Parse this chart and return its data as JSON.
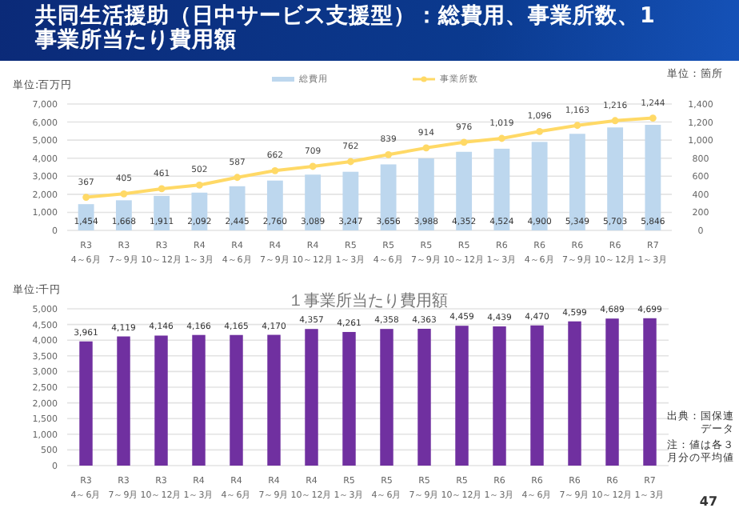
{
  "chart_data": [
    {
      "type": "bar",
      "title": "共同生活援助（日中サービス支援型）：総費用、事業所数、1事業所当たり費用額",
      "ylabel": "単位:百万円",
      "y2label": "単位：箇所",
      "categories": [
        "R3\n4～6月",
        "R3\n7～9月",
        "R3\n10～12月",
        "R4\n1～3月",
        "R4\n4～6月",
        "R4\n7～9月",
        "R4\n10～12月",
        "R5\n1～3月",
        "R5\n4～6月",
        "R5\n7～9月",
        "R5\n10～12月",
        "R6\n1～3月",
        "R6\n4～6月",
        "R6\n7～9月",
        "R6\n10～12月",
        "R7\n1～3月"
      ],
      "series": [
        {
          "name": "総費用",
          "color": "#bdd7ee",
          "values": [
            1454,
            1668,
            1911,
            2092,
            2445,
            2760,
            3089,
            3247,
            3656,
            3988,
            4352,
            4524,
            4900,
            5349,
            5703,
            5846
          ],
          "value_labels": [
            "1,454",
            "1,668",
            "1,911",
            "2,092",
            "2,445",
            "2,760",
            "3,089",
            "3,247",
            "3,656",
            "3,988",
            "4,352",
            "4,524",
            "4,900",
            "5,349",
            "5,703",
            "5,846"
          ]
        },
        {
          "name": "事業所数",
          "type": "line",
          "axis": "y2",
          "color": "#ffd966",
          "marker": "circle",
          "values": [
            367,
            405,
            461,
            502,
            587,
            662,
            709,
            762,
            839,
            914,
            976,
            1019,
            1096,
            1163,
            1216,
            1244
          ],
          "value_labels": [
            "367",
            "405",
            "461",
            "502",
            "587",
            "662",
            "709",
            "762",
            "839",
            "914",
            "976",
            "1,019",
            "1,096",
            "1,163",
            "1,216",
            "1,244"
          ]
        }
      ],
      "ylim": [
        0,
        7000
      ],
      "yticks": [
        {
          "value": 0,
          "label": "0"
        },
        {
          "value": 1000,
          "label": "1,000"
        },
        {
          "value": 2000,
          "label": "2,000"
        },
        {
          "value": 3000,
          "label": "3,000"
        },
        {
          "value": 4000,
          "label": "4,000"
        },
        {
          "value": 5000,
          "label": "5,000"
        },
        {
          "value": 6000,
          "label": "6,000"
        },
        {
          "value": 7000,
          "label": "7,000"
        }
      ],
      "y2lim": [
        0,
        1400
      ],
      "y2ticks": [
        {
          "value": 0,
          "label": "0"
        },
        200,
        400,
        600,
        800,
        {
          "value": 1000,
          "label": "1,000"
        },
        {
          "value": 1200,
          "label": "1,200"
        },
        {
          "value": 1400,
          "label": "1,400"
        }
      ],
      "grid": "y",
      "legend": "top"
    },
    {
      "type": "bar",
      "title": "１事業所当たり費用額",
      "ylabel": "単位:千円",
      "categories": [
        "R3\n4～6月",
        "R3\n7～9月",
        "R3\n10～12月",
        "R4\n1～3月",
        "R4\n4～6月",
        "R4\n7～9月",
        "R4\n10～12月",
        "R5\n1～3月",
        "R5\n4～6月",
        "R5\n7～9月",
        "R5\n10～12月",
        "R6\n1～3月",
        "R6\n4～6月",
        "R6\n7～9月",
        "R6\n10～12月",
        "R7\n1～3月"
      ],
      "values": [
        3961,
        4119,
        4146,
        4166,
        4165,
        4170,
        4357,
        4261,
        4358,
        4363,
        4459,
        4439,
        4470,
        4599,
        4689,
        4699
      ],
      "color": "#7030a0",
      "value_labels": [
        "3,961",
        "4,119",
        "4,146",
        "4,166",
        "4,165",
        "4,170",
        "4,357",
        "4,261",
        "4,358",
        "4,363",
        "4,459",
        "4,439",
        "4,470",
        "4,599",
        "4,689",
        "4,699"
      ],
      "ylim": [
        0,
        5000
      ],
      "yticks": [
        {
          "value": 0,
          "label": "0"
        },
        500,
        {
          "value": 1000,
          "label": "1,000"
        },
        {
          "value": 1500,
          "label": "1,500"
        },
        {
          "value": 2000,
          "label": "2,000"
        },
        {
          "value": 2500,
          "label": "2,500"
        },
        {
          "value": 3000,
          "label": "3,000"
        },
        {
          "value": 3500,
          "label": "3,500"
        },
        {
          "value": 4000,
          "label": "4,000"
        },
        {
          "value": 4500,
          "label": "4,500"
        },
        {
          "value": 5000,
          "label": "5,000"
        }
      ],
      "grid": "y",
      "annotations": [
        "出典：国保連データ",
        "注：値は各３月分の平均値",
        "47"
      ]
    }
  ]
}
